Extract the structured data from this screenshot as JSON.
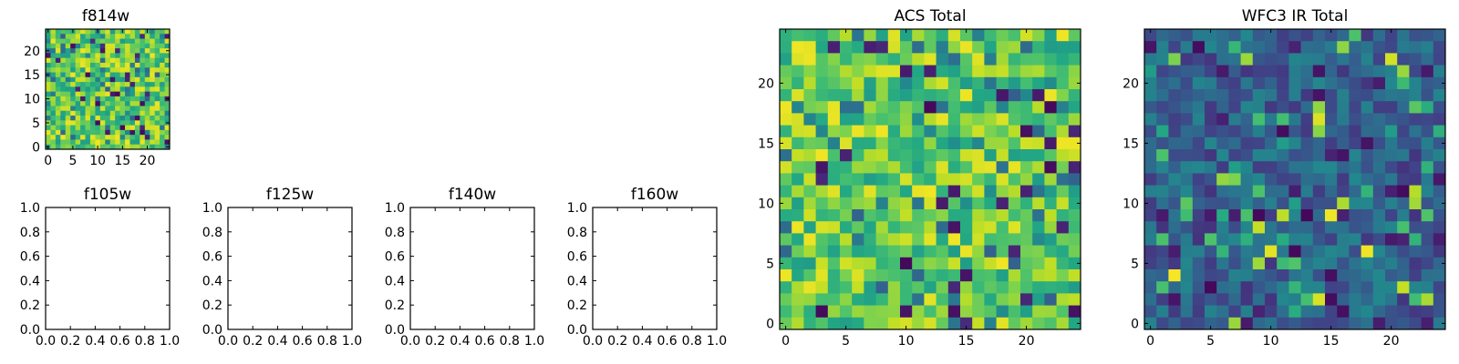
{
  "figure": {
    "panels": [
      "f814w",
      "f105w",
      "f125w",
      "f140w",
      "f160w",
      "ACS Total",
      "WFC3 IR Total"
    ]
  },
  "chart_data": [
    {
      "type": "heatmap",
      "title": "f814w",
      "colormap": "viridis",
      "grid_size": [
        25,
        25
      ],
      "xlim": [
        -0.5,
        24.5
      ],
      "ylim": [
        -0.5,
        24.5
      ],
      "xticks": [
        0,
        5,
        10,
        15,
        20
      ],
      "yticks": [
        0,
        5,
        10,
        15,
        20
      ],
      "grid": false,
      "values": "25x25 pixel noise image, mostly green-yellow (~0.55-0.95 normalized) with scattered dark purple/blue pixels; exact per-pixel values not legible"
    },
    {
      "type": "line",
      "title": "f105w",
      "xlim": [
        0.0,
        1.0
      ],
      "ylim": [
        0.0,
        1.0
      ],
      "xticks": [
        "0.0",
        "0.2",
        "0.4",
        "0.6",
        "0.8",
        "1.0"
      ],
      "yticks": [
        "0.0",
        "0.2",
        "0.4",
        "0.6",
        "0.8",
        "1.0"
      ],
      "series": []
    },
    {
      "type": "line",
      "title": "f125w",
      "xlim": [
        0.0,
        1.0
      ],
      "ylim": [
        0.0,
        1.0
      ],
      "xticks": [
        "0.0",
        "0.2",
        "0.4",
        "0.6",
        "0.8",
        "1.0"
      ],
      "yticks": [
        "0.0",
        "0.2",
        "0.4",
        "0.6",
        "0.8",
        "1.0"
      ],
      "series": []
    },
    {
      "type": "line",
      "title": "f140w",
      "xlim": [
        0.0,
        1.0
      ],
      "ylim": [
        0.0,
        1.0
      ],
      "xticks": [
        "0.0",
        "0.2",
        "0.4",
        "0.6",
        "0.8",
        "1.0"
      ],
      "yticks": [
        "0.0",
        "0.2",
        "0.4",
        "0.6",
        "0.8",
        "1.0"
      ],
      "series": []
    },
    {
      "type": "line",
      "title": "f160w",
      "xlim": [
        0.0,
        1.0
      ],
      "ylim": [
        0.0,
        1.0
      ],
      "xticks": [
        "0.0",
        "0.2",
        "0.4",
        "0.6",
        "0.8",
        "1.0"
      ],
      "yticks": [
        "0.0",
        "0.2",
        "0.4",
        "0.6",
        "0.8",
        "1.0"
      ],
      "series": []
    },
    {
      "type": "heatmap",
      "title": "ACS Total",
      "colormap": "viridis",
      "grid_size": [
        25,
        25
      ],
      "xlim": [
        -0.5,
        24.5
      ],
      "ylim": [
        -0.5,
        24.5
      ],
      "xticks": [
        0,
        5,
        10,
        15,
        20
      ],
      "yticks": [
        0,
        5,
        10,
        15,
        20
      ],
      "grid": false,
      "values": "25x25 pixel noise image, mostly green-yellow (~0.55-0.95 normalized) with a few dark purple pixels; exact per-pixel values not legible"
    },
    {
      "type": "heatmap",
      "title": "WFC3 IR Total",
      "colormap": "viridis",
      "grid_size": [
        25,
        25
      ],
      "xlim": [
        -0.5,
        24.5
      ],
      "ylim": [
        -0.5,
        24.5
      ],
      "xticks": [
        0,
        5,
        10,
        15,
        20
      ],
      "yticks": [
        0,
        5,
        10,
        15,
        20
      ],
      "grid": false,
      "values": "25x25 pixel noise image, mostly dark blue/teal (~0.15-0.45 normalized) with a few bright green/yellow pixels; exact per-pixel values not legible"
    }
  ]
}
